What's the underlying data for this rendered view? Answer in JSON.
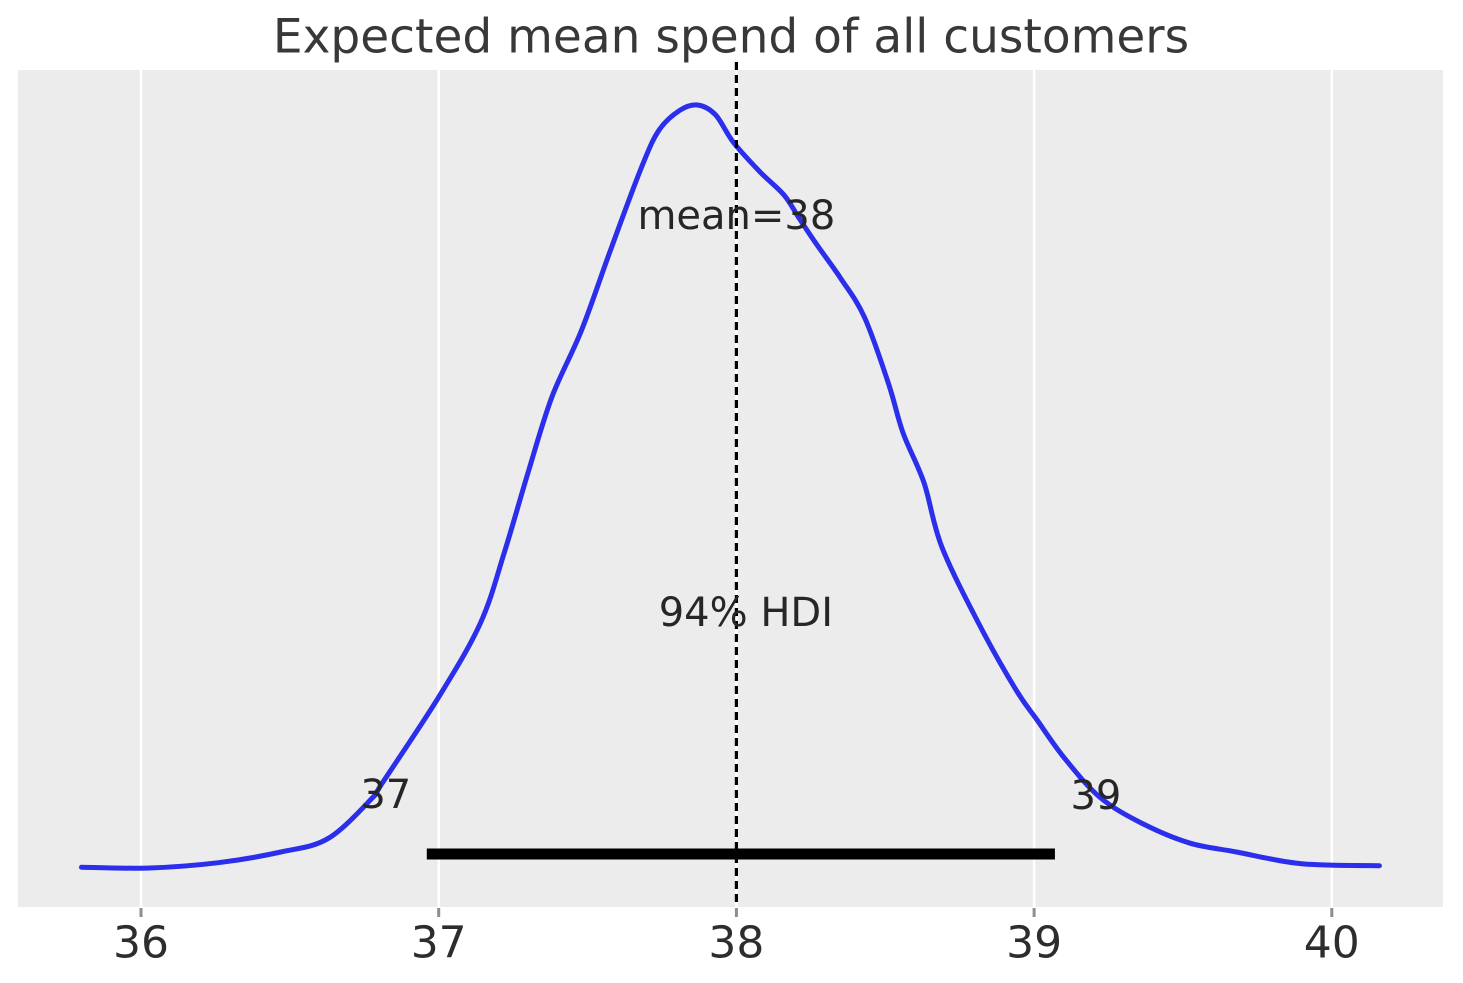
{
  "chart_data": {
    "type": "line",
    "kind": "posterior-kde",
    "title": "Expected mean spend of all customers",
    "xlabel": "",
    "ylabel": "",
    "xlim": [
      35.59,
      40.37
    ],
    "x_ticks": [
      36,
      37,
      38,
      39,
      40
    ],
    "x_tick_labels": [
      "36",
      "37",
      "38",
      "39",
      "40"
    ],
    "grid": "vertical-white-on-gray",
    "mean": 38,
    "mean_label": "mean=38",
    "hdi_prob": 0.94,
    "hdi_prob_label": "94% HDI",
    "hdi": {
      "lower": 36.96,
      "upper": 39.07,
      "lower_label": "37",
      "upper_label": "39"
    },
    "kde": {
      "x": [
        35.8,
        36.03,
        36.26,
        36.47,
        36.63,
        36.78,
        36.81,
        37.0,
        37.14,
        37.22,
        37.3,
        37.38,
        37.48,
        37.58,
        37.68,
        37.74,
        37.81,
        37.87,
        37.93,
        37.99,
        38.08,
        38.16,
        38.21,
        38.27,
        38.35,
        38.43,
        38.51,
        38.56,
        38.63,
        38.69,
        38.82,
        38.94,
        39.01,
        39.1,
        39.22,
        39.36,
        39.52,
        39.68,
        39.85,
        39.97,
        40.16
      ],
      "density": [
        0.001,
        0.0,
        0.007,
        0.021,
        0.039,
        0.093,
        0.111,
        0.224,
        0.321,
        0.413,
        0.518,
        0.617,
        0.705,
        0.813,
        0.917,
        0.967,
        0.993,
        1.0,
        0.987,
        0.951,
        0.912,
        0.882,
        0.852,
        0.817,
        0.773,
        0.722,
        0.636,
        0.57,
        0.505,
        0.421,
        0.316,
        0.233,
        0.194,
        0.145,
        0.093,
        0.059,
        0.033,
        0.021,
        0.008,
        0.004,
        0.003
      ]
    },
    "colors": {
      "curve": "#2b2eea",
      "plot_background": "#ececec",
      "gridline": "#ffffff",
      "mean_line": "#000000",
      "hdi_bar": "#000000",
      "tick_mark": "#8e8e8e",
      "text": "#262626",
      "title_text": "#383838"
    }
  }
}
